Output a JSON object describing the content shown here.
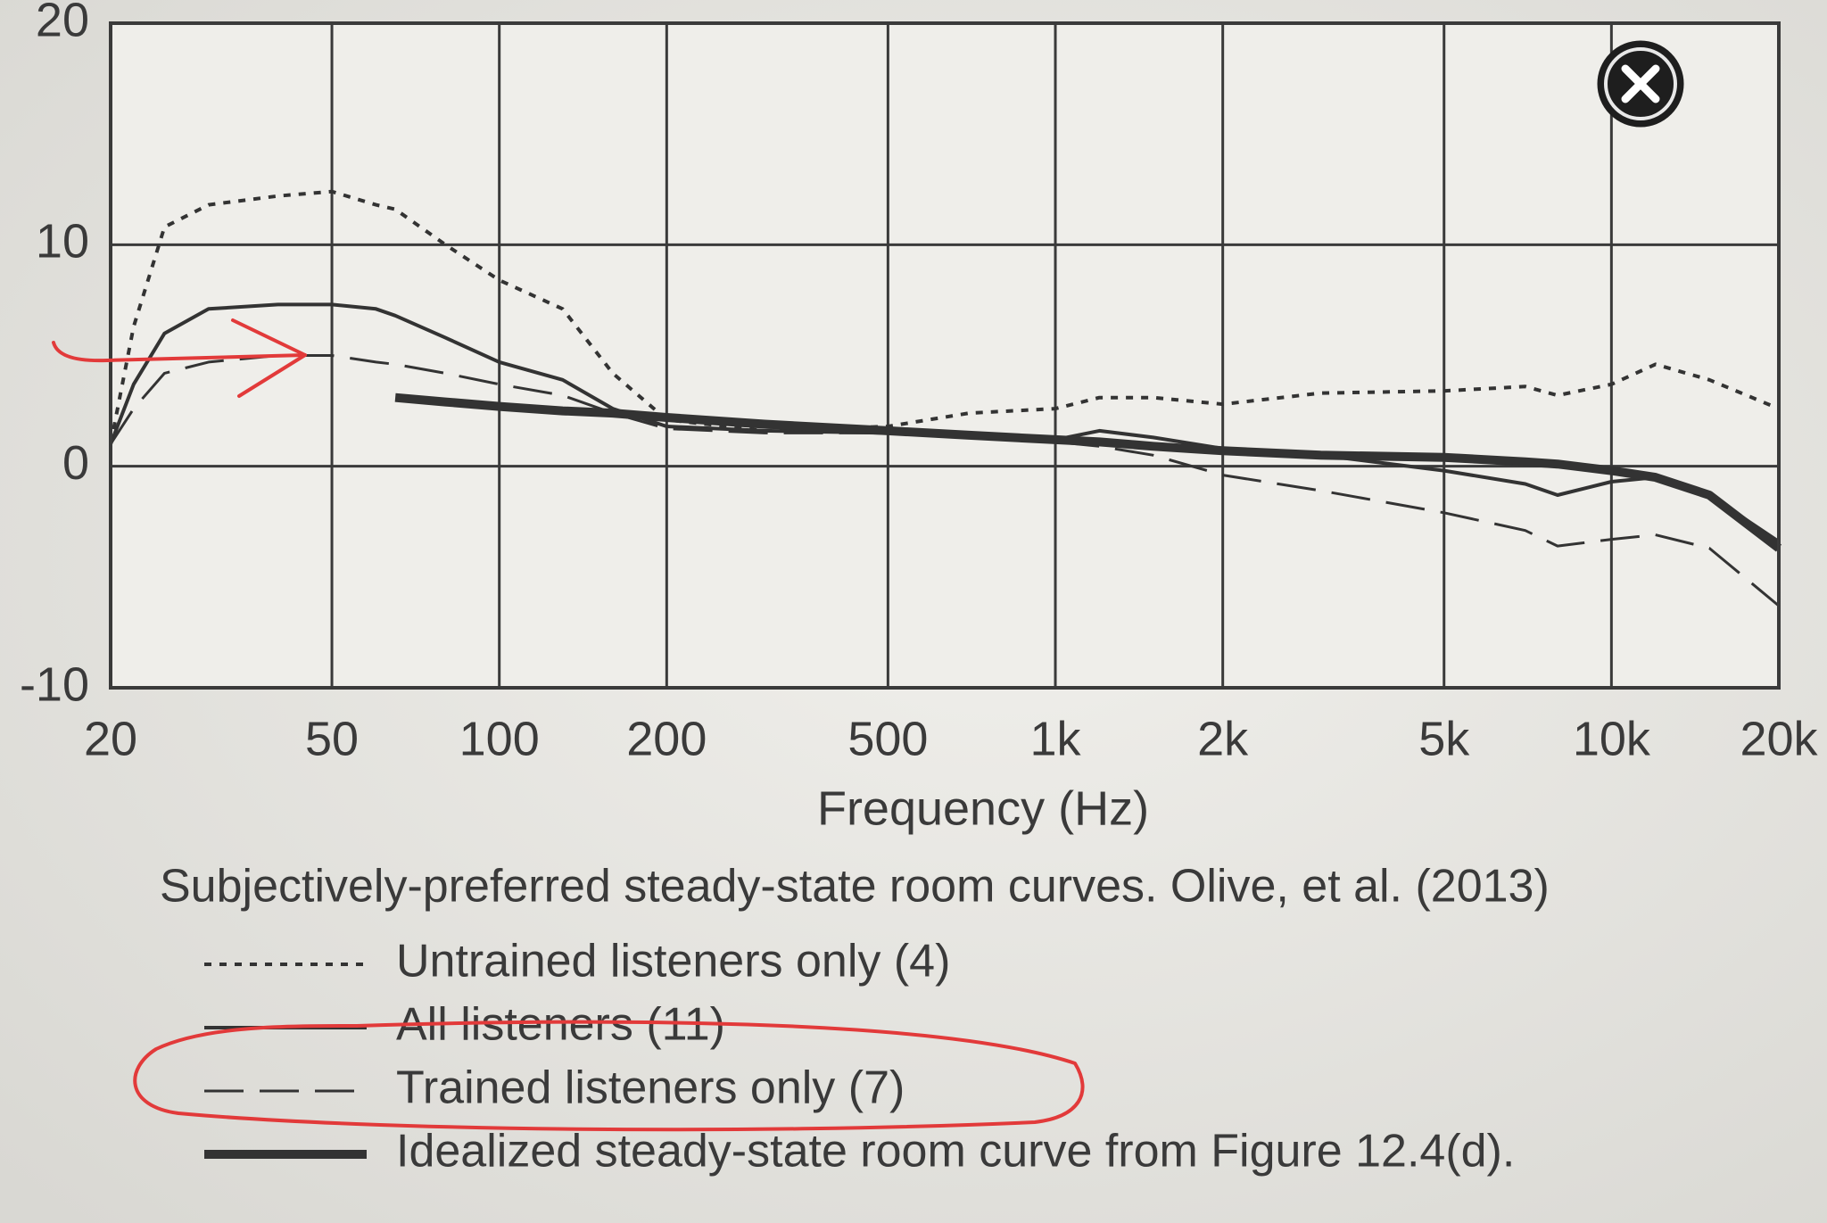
{
  "chart_data": {
    "type": "line",
    "title": "Subjectively-preferred steady-state room curves. Olive, et al. (2013)",
    "x_label": "Frequency (Hz)",
    "log_x": true,
    "grid": true,
    "xlim": [
      20,
      20000
    ],
    "ylim": [
      -10,
      20
    ],
    "xticks": [
      20,
      50,
      100,
      200,
      500,
      {
        "value": 1000,
        "label": "1k"
      },
      {
        "value": 2000,
        "label": "2k"
      },
      {
        "value": 5000,
        "label": "5k"
      },
      {
        "value": 10000,
        "label": "10k"
      },
      {
        "value": 20000,
        "label": "20k"
      }
    ],
    "yticks": [
      -10,
      0,
      10,
      20
    ],
    "x": [
      20,
      22,
      25,
      30,
      40,
      50,
      60,
      65,
      80,
      100,
      130,
      160,
      200,
      300,
      500,
      700,
      1000,
      1200,
      1500,
      2000,
      3000,
      5000,
      7000,
      8000,
      10000,
      12000,
      15000,
      20000
    ],
    "series": [
      {
        "name": "Untrained listeners only (4)",
        "color": "#333333",
        "style": "dotted",
        "values": [
          1,
          6.3,
          10.8,
          11.8,
          12.2,
          12.4,
          11.8,
          11.6,
          10,
          8.4,
          7.1,
          4.2,
          2.1,
          1.6,
          1.8,
          2.4,
          2.6,
          3.1,
          3.1,
          2.8,
          3.3,
          3.4,
          3.6,
          3.2,
          3.7,
          4.6,
          3.9,
          2.6
        ]
      },
      {
        "name": "All listeners (11)",
        "color": "#333333",
        "style": "solid",
        "values": [
          1,
          3.7,
          6,
          7.1,
          7.3,
          7.3,
          7.1,
          6.8,
          5.8,
          4.7,
          3.9,
          2.6,
          1.8,
          1.6,
          1.5,
          1.5,
          1.2,
          1.6,
          1.3,
          0.8,
          0.5,
          -0.2,
          -0.8,
          -1.3,
          -0.7,
          -0.5,
          -1.3,
          -3.4
        ]
      },
      {
        "name": "Trained listeners only (7)",
        "color": "#333333",
        "style": "dashed",
        "values": [
          1,
          2.6,
          4.2,
          4.7,
          5,
          5,
          4.7,
          4.6,
          4.2,
          3.7,
          3.2,
          2.4,
          1.7,
          1.5,
          1.5,
          1.3,
          1.1,
          0.9,
          0.5,
          -0.4,
          -1.1,
          -2.1,
          -2.9,
          -3.6,
          -3.3,
          -3.1,
          -3.7,
          -6.3
        ]
      },
      {
        "name": "Idealized steady-state room curve from Figure 12.4(d).",
        "color": "#333333",
        "style": "thick",
        "values": [
          null,
          null,
          null,
          null,
          null,
          null,
          null,
          3.1,
          2.9,
          2.7,
          2.5,
          2.4,
          2.2,
          1.9,
          1.6,
          1.4,
          1.2,
          1.1,
          0.9,
          0.7,
          0.5,
          0.4,
          0.2,
          0.1,
          -0.2,
          -0.5,
          -1.3,
          -3.7
        ]
      }
    ]
  }
}
